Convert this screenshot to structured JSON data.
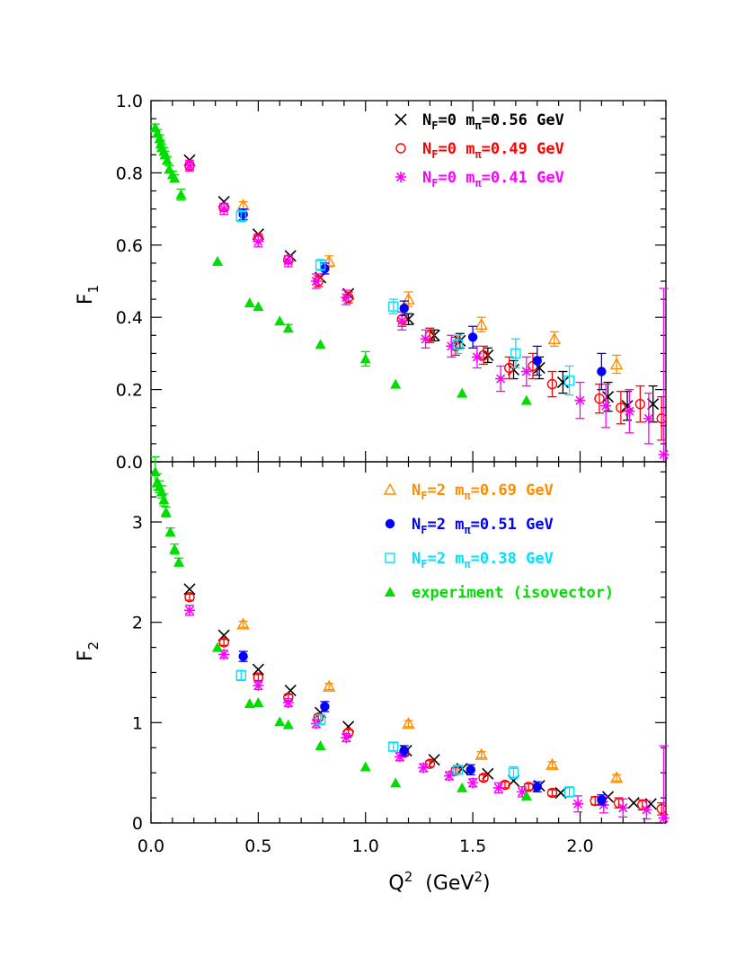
{
  "chart_data": [
    {
      "type": "scatter",
      "ylabel": "F",
      "ylabel_sub": "1",
      "xlim": [
        0,
        2.4
      ],
      "ylim": [
        0,
        1.0
      ],
      "yticks": [
        "0.0",
        "0.2",
        "0.4",
        "0.6",
        "0.8",
        "1.0"
      ],
      "legend": "top-right",
      "series": [
        {
          "key": "nf0_056",
          "label_n": "N",
          "label_nsub": "F",
          "label_mid": "=0  m",
          "label_msub": "π",
          "label_val": "=0.56  GeV",
          "color": "#000000",
          "marker": "cross",
          "points": [
            [
              0.18,
              0.835,
              0
            ],
            [
              0.34,
              0.72,
              0
            ],
            [
              0.5,
              0.63,
              0
            ],
            [
              0.65,
              0.57,
              0
            ],
            [
              0.79,
              0.51,
              0
            ],
            [
              0.92,
              0.465,
              0
            ],
            [
              1.2,
              0.395,
              0.015
            ],
            [
              1.32,
              0.35,
              0.015
            ],
            [
              1.44,
              0.335,
              0.02
            ],
            [
              1.57,
              0.295,
              0.02
            ],
            [
              1.69,
              0.255,
              0.025
            ],
            [
              1.81,
              0.26,
              0.03
            ],
            [
              1.92,
              0.22,
              0.03
            ],
            [
              2.13,
              0.18,
              0.04
            ],
            [
              2.22,
              0.155,
              0.04
            ],
            [
              2.34,
              0.16,
              0.05
            ]
          ]
        },
        {
          "key": "nf0_049",
          "label_n": "N",
          "label_nsub": "F",
          "label_mid": "=0  m",
          "label_msub": "π",
          "label_val": "=0.49  GeV",
          "color": "#ff0000",
          "marker": "circle",
          "points": [
            [
              0.18,
              0.82,
              0.01
            ],
            [
              0.34,
              0.705,
              0.01
            ],
            [
              0.5,
              0.62,
              0.01
            ],
            [
              0.64,
              0.56,
              0.01
            ],
            [
              0.78,
              0.5,
              0.015
            ],
            [
              0.92,
              0.455,
              0.015
            ],
            [
              1.17,
              0.395,
              0.02
            ],
            [
              1.3,
              0.35,
              0.02
            ],
            [
              1.42,
              0.32,
              0.025
            ],
            [
              1.55,
              0.295,
              0.025
            ],
            [
              1.67,
              0.26,
              0.03
            ],
            [
              1.78,
              0.265,
              0.035
            ],
            [
              1.87,
              0.215,
              0.035
            ],
            [
              2.09,
              0.175,
              0.04
            ],
            [
              2.19,
              0.15,
              0.045
            ],
            [
              2.28,
              0.16,
              0.05
            ],
            [
              2.38,
              0.12,
              0.06
            ]
          ]
        },
        {
          "key": "nf0_041",
          "label_n": "N",
          "label_nsub": "F",
          "label_mid": "=0  m",
          "label_msub": "π",
          "label_val": "=0.41  GeV",
          "color": "#ff00ff",
          "marker": "star",
          "points": [
            [
              0.18,
              0.82,
              0.015
            ],
            [
              0.34,
              0.7,
              0.015
            ],
            [
              0.5,
              0.61,
              0.015
            ],
            [
              0.64,
              0.555,
              0.015
            ],
            [
              0.77,
              0.5,
              0.02
            ],
            [
              0.91,
              0.455,
              0.02
            ],
            [
              1.17,
              0.39,
              0.025
            ],
            [
              1.28,
              0.34,
              0.025
            ],
            [
              1.4,
              0.32,
              0.03
            ],
            [
              1.52,
              0.29,
              0.03
            ],
            [
              1.63,
              0.23,
              0.035
            ],
            [
              1.75,
              0.25,
              0.04
            ],
            [
              2.0,
              0.17,
              0.05
            ],
            [
              2.12,
              0.155,
              0.06
            ],
            [
              2.23,
              0.14,
              0.06
            ],
            [
              2.32,
              0.12,
              0.07
            ],
            [
              2.39,
              0.02,
              0.46
            ]
          ]
        },
        {
          "key": "nf2_069",
          "label_n": "N",
          "label_nsub": "F",
          "label_mid": "=2  m",
          "label_msub": "π",
          "label_val": "=0.69  GeV",
          "color": "#ff8c00",
          "marker": "triangle-open",
          "points": [
            [
              0.43,
              0.71,
              0.01
            ],
            [
              0.83,
              0.555,
              0.015
            ],
            [
              1.2,
              0.45,
              0.02
            ],
            [
              1.54,
              0.38,
              0.02
            ],
            [
              1.88,
              0.34,
              0.02
            ],
            [
              2.17,
              0.27,
              0.025
            ]
          ]
        },
        {
          "key": "nf2_051",
          "label_n": "N",
          "label_nsub": "F",
          "label_mid": "=2  m",
          "label_msub": "π",
          "label_val": "=0.51  GeV",
          "color": "#0000ff",
          "marker": "circle-filled",
          "points": [
            [
              0.43,
              0.685,
              0.015
            ],
            [
              0.81,
              0.535,
              0.015
            ],
            [
              1.18,
              0.425,
              0.02
            ],
            [
              1.5,
              0.345,
              0.03
            ],
            [
              1.8,
              0.28,
              0.04
            ],
            [
              2.1,
              0.25,
              0.05
            ]
          ]
        },
        {
          "key": "nf2_038",
          "label_n": "N",
          "label_nsub": "F",
          "label_mid": "=2  m",
          "label_msub": "π",
          "label_val": "=0.38  GeV",
          "color": "#00e0ff",
          "marker": "square",
          "points": [
            [
              0.42,
              0.68,
              0.015
            ],
            [
              0.79,
              0.545,
              0.015
            ],
            [
              1.13,
              0.43,
              0.02
            ],
            [
              1.43,
              0.325,
              0.025
            ],
            [
              1.7,
              0.3,
              0.04
            ],
            [
              1.95,
              0.225,
              0.04
            ]
          ]
        },
        {
          "key": "experiment",
          "label_full": "experiment  (isovector)",
          "color": "#00dd00",
          "marker": "triangle-filled",
          "points": [
            [
              0.02,
              0.925,
              0.01
            ],
            [
              0.03,
              0.91,
              0.01
            ],
            [
              0.04,
              0.895,
              0.01
            ],
            [
              0.045,
              0.88,
              0.01
            ],
            [
              0.05,
              0.87,
              0.01
            ],
            [
              0.06,
              0.86,
              0.01
            ],
            [
              0.065,
              0.85,
              0.01
            ],
            [
              0.075,
              0.835,
              0.01
            ],
            [
              0.085,
              0.81,
              0.01
            ],
            [
              0.1,
              0.795,
              0.01
            ],
            [
              0.11,
              0.785,
              0.01
            ],
            [
              0.14,
              0.74,
              0.015
            ],
            [
              0.31,
              0.555,
              0
            ],
            [
              0.46,
              0.44,
              0
            ],
            [
              0.5,
              0.43,
              0
            ],
            [
              0.6,
              0.39,
              0
            ],
            [
              0.64,
              0.37,
              0.01
            ],
            [
              0.79,
              0.325,
              0
            ],
            [
              1.0,
              0.285,
              0.02
            ],
            [
              1.14,
              0.215,
              0
            ],
            [
              1.45,
              0.19,
              0
            ],
            [
              1.75,
              0.17,
              0
            ]
          ]
        }
      ]
    },
    {
      "type": "scatter",
      "xlabel": "Q",
      "xlabel_sup": "2",
      "xlabel_unit": "(GeV",
      "xlabel_unit_sup": "2",
      "xlabel_unit_end": ")",
      "ylabel": "F",
      "ylabel_sub": "2",
      "xlim": [
        0,
        2.4
      ],
      "ylim": [
        0,
        3.6
      ],
      "xticks": [
        "0.0",
        "0.5",
        "1.0",
        "1.5",
        "2.0"
      ],
      "yticks": [
        "0",
        "1",
        "2",
        "3"
      ],
      "series": [
        {
          "key": "nf0_056",
          "points": [
            [
              0.18,
              2.33,
              0
            ],
            [
              0.34,
              1.87,
              0
            ],
            [
              0.5,
              1.53,
              0
            ],
            [
              0.65,
              1.32,
              0
            ],
            [
              0.79,
              1.1,
              0
            ],
            [
              0.92,
              0.96,
              0
            ],
            [
              1.19,
              0.72,
              0
            ],
            [
              1.32,
              0.63,
              0
            ],
            [
              1.45,
              0.54,
              0
            ],
            [
              1.57,
              0.49,
              0
            ],
            [
              1.69,
              0.42,
              0
            ],
            [
              1.81,
              0.37,
              0
            ],
            [
              1.91,
              0.3,
              0
            ],
            [
              2.13,
              0.26,
              0
            ],
            [
              2.25,
              0.2,
              0
            ],
            [
              2.33,
              0.19,
              0
            ]
          ]
        },
        {
          "key": "nf0_049",
          "points": [
            [
              0.18,
              2.25,
              0.03
            ],
            [
              0.34,
              1.8,
              0.03
            ],
            [
              0.5,
              1.45,
              0.03
            ],
            [
              0.64,
              1.25,
              0.03
            ],
            [
              0.78,
              1.05,
              0.03
            ],
            [
              0.92,
              0.9,
              0.03
            ],
            [
              1.18,
              0.7,
              0.03
            ],
            [
              1.3,
              0.59,
              0.03
            ],
            [
              1.42,
              0.52,
              0.03
            ],
            [
              1.55,
              0.45,
              0.03
            ],
            [
              1.65,
              0.38,
              0.03
            ],
            [
              1.76,
              0.36,
              0.03
            ],
            [
              1.87,
              0.3,
              0.03
            ],
            [
              2.07,
              0.22,
              0.04
            ],
            [
              2.18,
              0.2,
              0.05
            ],
            [
              2.29,
              0.18,
              0.05
            ],
            [
              2.38,
              0.14,
              0.06
            ]
          ]
        },
        {
          "key": "nf0_041",
          "points": [
            [
              0.18,
              2.12,
              0.05
            ],
            [
              0.34,
              1.68,
              0.04
            ],
            [
              0.5,
              1.37,
              0.04
            ],
            [
              0.64,
              1.2,
              0.04
            ],
            [
              0.77,
              0.99,
              0.04
            ],
            [
              0.91,
              0.85,
              0.04
            ],
            [
              1.16,
              0.66,
              0.04
            ],
            [
              1.27,
              0.55,
              0.04
            ],
            [
              1.39,
              0.47,
              0.04
            ],
            [
              1.5,
              0.4,
              0.04
            ],
            [
              1.62,
              0.35,
              0.05
            ],
            [
              1.73,
              0.31,
              0.05
            ],
            [
              1.99,
              0.19,
              0.08
            ],
            [
              2.11,
              0.18,
              0.08
            ],
            [
              2.2,
              0.15,
              0.09
            ],
            [
              2.31,
              0.13,
              0.09
            ],
            [
              2.39,
              0.05,
              0.72
            ]
          ]
        },
        {
          "key": "nf2_069",
          "points": [
            [
              0.43,
              1.98,
              0.03
            ],
            [
              0.83,
              1.36,
              0.03
            ],
            [
              1.2,
              0.99,
              0.03
            ],
            [
              1.54,
              0.68,
              0.03
            ],
            [
              1.87,
              0.58,
              0.03
            ],
            [
              2.17,
              0.45,
              0.03
            ]
          ]
        },
        {
          "key": "nf2_051",
          "points": [
            [
              0.43,
              1.66,
              0.05
            ],
            [
              0.81,
              1.16,
              0.05
            ],
            [
              1.18,
              0.72,
              0.05
            ],
            [
              1.49,
              0.53,
              0.05
            ],
            [
              1.8,
              0.36,
              0.05
            ],
            [
              2.1,
              0.23,
              0.05
            ]
          ]
        },
        {
          "key": "nf2_038",
          "points": [
            [
              0.42,
              1.47,
              0.05
            ],
            [
              0.79,
              1.03,
              0.05
            ],
            [
              1.13,
              0.76,
              0.04
            ],
            [
              1.43,
              0.53,
              0.04
            ],
            [
              1.69,
              0.5,
              0.06
            ],
            [
              1.95,
              0.31,
              0.05
            ]
          ]
        },
        {
          "key": "experiment",
          "points": [
            [
              0.02,
              3.5,
              0.15
            ],
            [
              0.03,
              3.4,
              0.08
            ],
            [
              0.04,
              3.35,
              0.06
            ],
            [
              0.05,
              3.3,
              0.06
            ],
            [
              0.06,
              3.22,
              0.06
            ],
            [
              0.07,
              3.1,
              0.05
            ],
            [
              0.09,
              2.9,
              0.04
            ],
            [
              0.11,
              2.73,
              0.05
            ],
            [
              0.13,
              2.6,
              0.04
            ],
            [
              0.31,
              1.75,
              0
            ],
            [
              0.46,
              1.19,
              0
            ],
            [
              0.5,
              1.2,
              0
            ],
            [
              0.6,
              1.01,
              0
            ],
            [
              0.64,
              0.98,
              0
            ],
            [
              0.79,
              0.77,
              0
            ],
            [
              1.0,
              0.56,
              0
            ],
            [
              1.14,
              0.4,
              0
            ],
            [
              1.45,
              0.35,
              0
            ],
            [
              1.75,
              0.27,
              0
            ]
          ]
        }
      ]
    }
  ]
}
